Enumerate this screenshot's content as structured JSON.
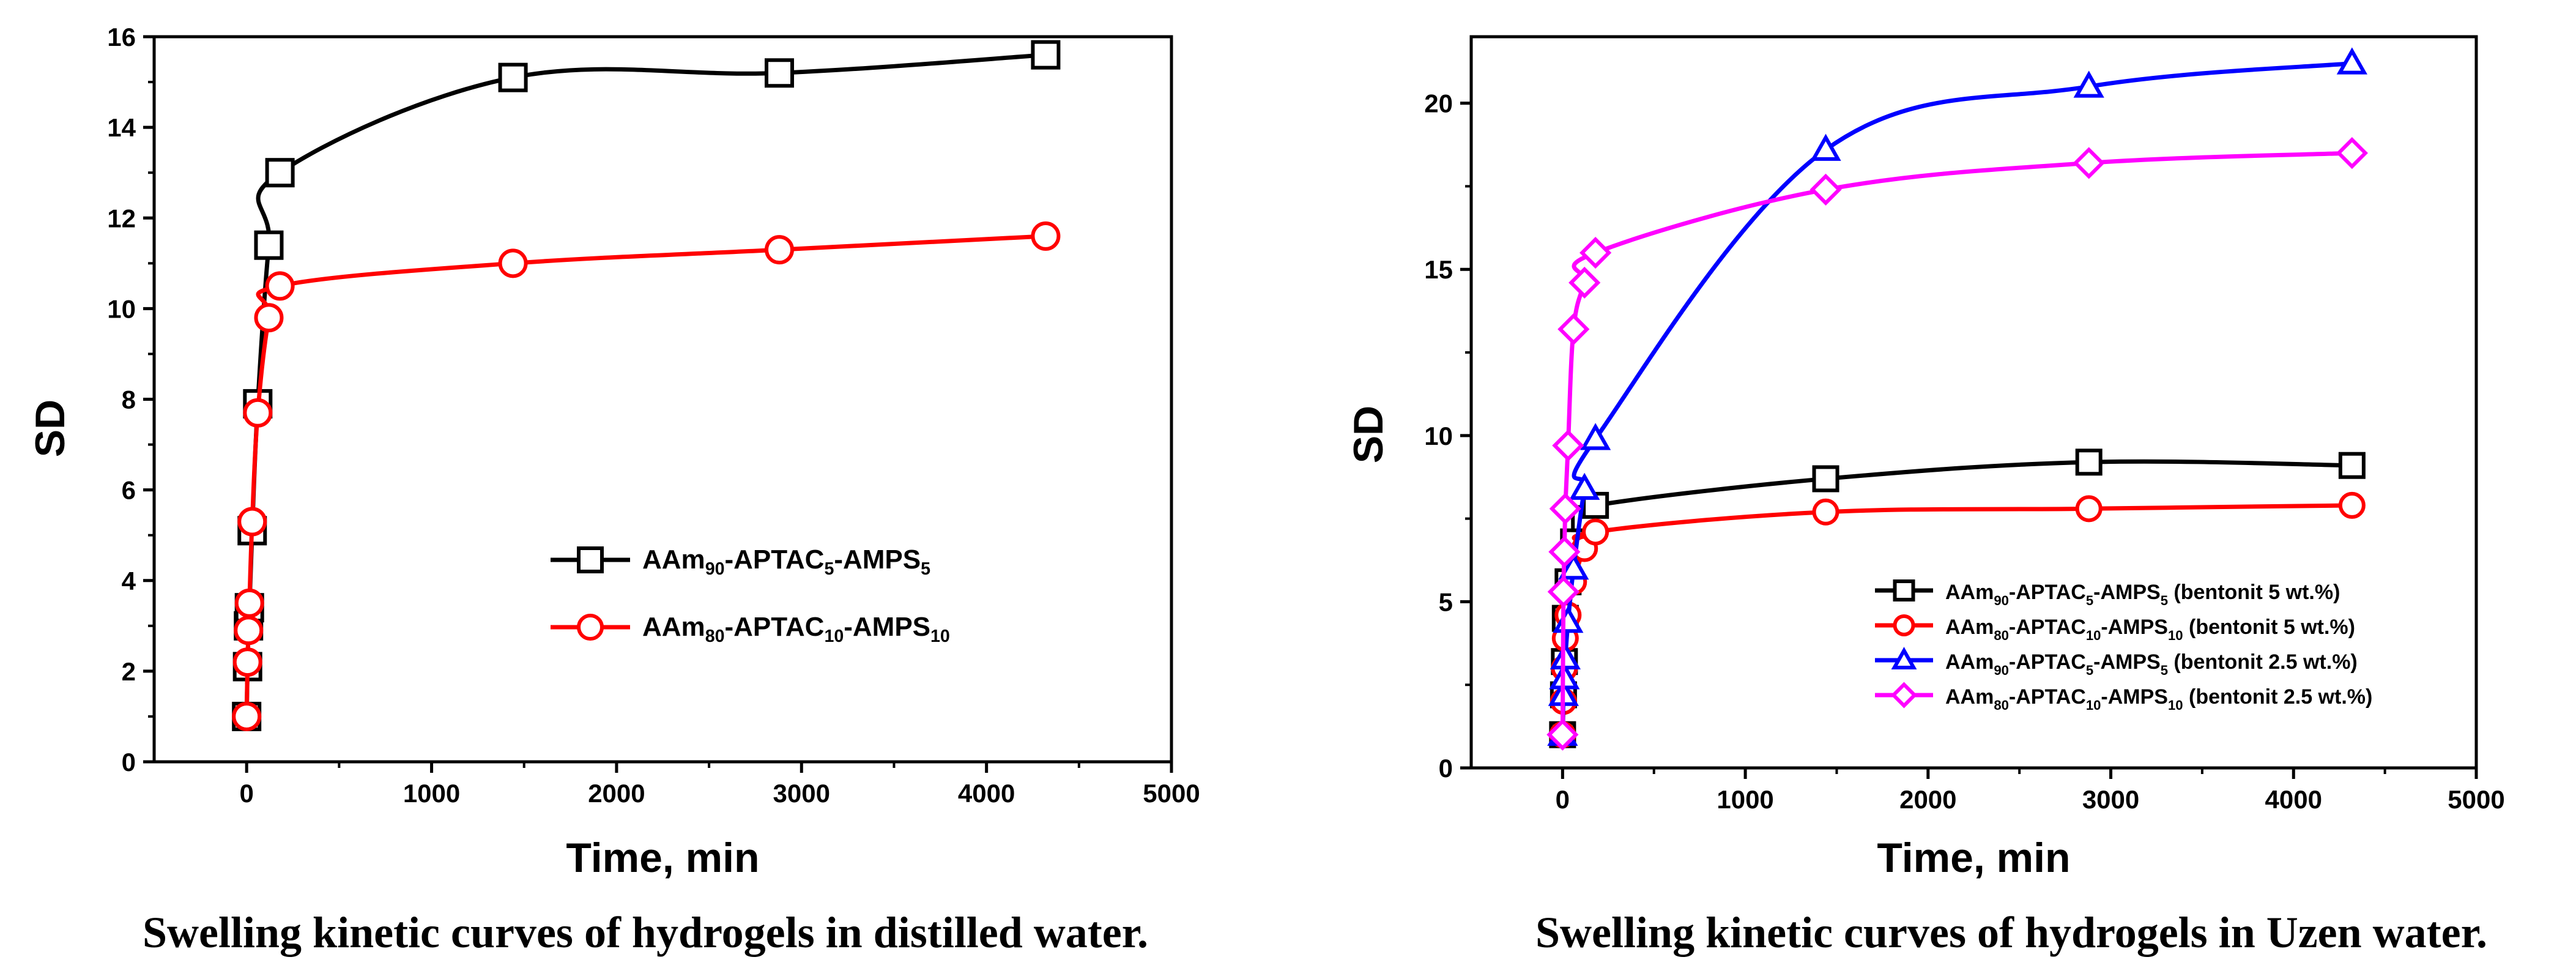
{
  "chart_data": [
    {
      "type": "line",
      "caption": "Swelling kinetic curves of hydrogels in distilled water.",
      "xlabel": "Time, min",
      "ylabel": "SD",
      "xlim": [
        -500,
        5000
      ],
      "ylim": [
        0,
        16
      ],
      "xticks": [
        "0",
        "1000",
        "2000",
        "3000",
        "4000",
        "5000"
      ],
      "yticks": [
        "0",
        "2",
        "4",
        "6",
        "8",
        "10",
        "12",
        "14",
        "16"
      ],
      "legend_position": "center-right",
      "series": [
        {
          "name": "AAm90-APTAC5-AMPS5",
          "label_parts": [
            [
              "AAm",
              ""
            ],
            [
              "90",
              "sub"
            ],
            [
              "-APTAC",
              ""
            ],
            [
              "5",
              "sub"
            ],
            [
              "-AMPS",
              ""
            ],
            [
              "5",
              "sub"
            ]
          ],
          "color": "#000000",
          "marker": "square",
          "x": [
            0,
            5,
            10,
            15,
            30,
            60,
            120,
            180,
            1440,
            2880,
            4320
          ],
          "y": [
            1.0,
            2.1,
            3.0,
            3.4,
            5.1,
            7.9,
            11.4,
            13.0,
            15.1,
            15.2,
            15.6
          ]
        },
        {
          "name": "AAm80-APTAC10-AMPS10",
          "label_parts": [
            [
              "AAm",
              ""
            ],
            [
              "80",
              "sub"
            ],
            [
              "-APTAC",
              ""
            ],
            [
              "10",
              "sub"
            ],
            [
              "-AMPS",
              ""
            ],
            [
              "10",
              "sub"
            ]
          ],
          "color": "#ff0000",
          "marker": "circle",
          "x": [
            0,
            5,
            10,
            15,
            30,
            60,
            120,
            180,
            1440,
            2880,
            4320
          ],
          "y": [
            1.0,
            2.2,
            2.9,
            3.5,
            5.3,
            7.7,
            9.8,
            10.5,
            11.0,
            11.3,
            11.6
          ]
        }
      ]
    },
    {
      "type": "line",
      "caption": "Swelling kinetic curves of hydrogels in Uzen water.",
      "xlabel": "Time, min",
      "ylabel": "SD",
      "xlim": [
        -500,
        5000
      ],
      "ylim": [
        0,
        22
      ],
      "xticks": [
        "0",
        "1000",
        "2000",
        "3000",
        "4000",
        "5000"
      ],
      "yticks": [
        "0",
        "5",
        "10",
        "15",
        "20"
      ],
      "legend_position": "lower-right",
      "series": [
        {
          "name": "AAm90-APTAC5-AMPS5 (bentonit 5 wt.%)",
          "label_parts": [
            [
              "AAm",
              ""
            ],
            [
              "90",
              "sub"
            ],
            [
              "-APTAC",
              ""
            ],
            [
              "5",
              "sub"
            ],
            [
              "-AMPS",
              ""
            ],
            [
              "5",
              "sub"
            ],
            [
              " (bentonit 5 wt.%)",
              ""
            ]
          ],
          "color": "#000000",
          "marker": "square",
          "x": [
            0,
            5,
            10,
            15,
            30,
            60,
            120,
            180,
            1440,
            2880,
            4320
          ],
          "y": [
            1.0,
            2.2,
            3.2,
            4.5,
            5.6,
            6.8,
            7.5,
            7.9,
            8.7,
            9.2,
            9.1
          ]
        },
        {
          "name": "AAm80-APTAC10-AMPS10 (bentonit 5 wt.%)",
          "label_parts": [
            [
              "AAm",
              ""
            ],
            [
              "80",
              "sub"
            ],
            [
              "-APTAC",
              ""
            ],
            [
              "10",
              "sub"
            ],
            [
              "-AMPS",
              ""
            ],
            [
              "10",
              "sub"
            ],
            [
              " (bentonit 5 wt.%)",
              ""
            ]
          ],
          "color": "#ff0000",
          "marker": "circle",
          "x": [
            0,
            5,
            10,
            15,
            30,
            60,
            120,
            180,
            1440,
            2880,
            4320
          ],
          "y": [
            1.0,
            2.0,
            3.0,
            3.9,
            4.6,
            5.6,
            6.6,
            7.1,
            7.7,
            7.8,
            7.9
          ]
        },
        {
          "name": "AAm90-APTAC5-AMPS5 (bentonit 2.5 wt.%)",
          "label_parts": [
            [
              "AAm",
              ""
            ],
            [
              "90",
              "sub"
            ],
            [
              "-APTAC",
              ""
            ],
            [
              "5",
              "sub"
            ],
            [
              "-AMPS",
              ""
            ],
            [
              "5",
              "sub"
            ],
            [
              " (bentonit 2.5 wt.%)",
              ""
            ]
          ],
          "color": "#0000ff",
          "marker": "triangle",
          "x": [
            0,
            5,
            10,
            15,
            30,
            60,
            120,
            180,
            1440,
            2880,
            4320
          ],
          "y": [
            1.0,
            2.2,
            2.7,
            3.3,
            4.4,
            6.0,
            8.4,
            9.9,
            18.6,
            20.5,
            21.2
          ]
        },
        {
          "name": "AAm80-APTAC10-AMPS10 (bentonit 2.5 wt.%)",
          "label_parts": [
            [
              "AAm",
              ""
            ],
            [
              "80",
              "sub"
            ],
            [
              "-APTAC",
              ""
            ],
            [
              "10",
              "sub"
            ],
            [
              "-AMPS",
              ""
            ],
            [
              "10",
              "sub"
            ],
            [
              " (bentonit 2.5 wt.%)",
              ""
            ]
          ],
          "color": "#ff00ff",
          "marker": "diamond",
          "x": [
            0,
            5,
            10,
            15,
            30,
            60,
            120,
            180,
            1440,
            2880,
            4320
          ],
          "y": [
            1.0,
            5.3,
            6.5,
            7.8,
            9.7,
            13.2,
            14.6,
            15.5,
            17.4,
            18.2,
            18.5
          ]
        }
      ]
    }
  ]
}
